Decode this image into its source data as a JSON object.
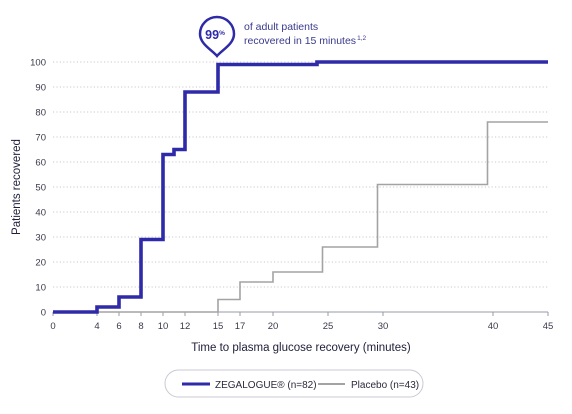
{
  "chart_data": {
    "type": "line",
    "step": true,
    "xlabel": "Time to plasma glucose recovery (minutes)",
    "ylabel": "Patients recovered",
    "xlim": [
      0,
      45
    ],
    "ylim": [
      0,
      100
    ],
    "x_ticks": [
      0,
      4,
      6,
      8,
      10,
      12,
      15,
      17,
      20,
      25,
      30,
      40,
      45
    ],
    "x_tick_labels": [
      "0",
      "4",
      "6",
      "8",
      "10",
      "12",
      "15",
      "17",
      "20",
      "25",
      "30",
      "40",
      "45"
    ],
    "y_ticks": [
      0,
      10,
      20,
      30,
      40,
      50,
      60,
      70,
      80,
      90,
      100
    ],
    "grid": "horizontal-dotted",
    "legend_position": "bottom",
    "series": [
      {
        "name": "ZEGALOGUE® (n=82)",
        "color": "#2e2aa8",
        "points": [
          [
            0,
            0
          ],
          [
            4,
            2
          ],
          [
            6,
            6
          ],
          [
            8,
            29
          ],
          [
            10,
            63
          ],
          [
            11,
            65
          ],
          [
            12,
            88
          ],
          [
            15,
            99
          ],
          [
            24,
            100
          ],
          [
            45,
            100
          ]
        ]
      },
      {
        "name": "Placebo (n=43)",
        "color": "#a3a3a3",
        "points": [
          [
            0,
            0
          ],
          [
            15,
            5
          ],
          [
            17,
            12
          ],
          [
            20,
            16
          ],
          [
            24.5,
            26
          ],
          [
            29.5,
            51
          ],
          [
            39.5,
            76
          ],
          [
            45,
            76
          ]
        ]
      }
    ],
    "annotation": {
      "value": "99",
      "unit": "%",
      "text_line1": "of adult patients",
      "text_line2": "recovered in 15 minutes",
      "superscript": "1,2"
    }
  }
}
